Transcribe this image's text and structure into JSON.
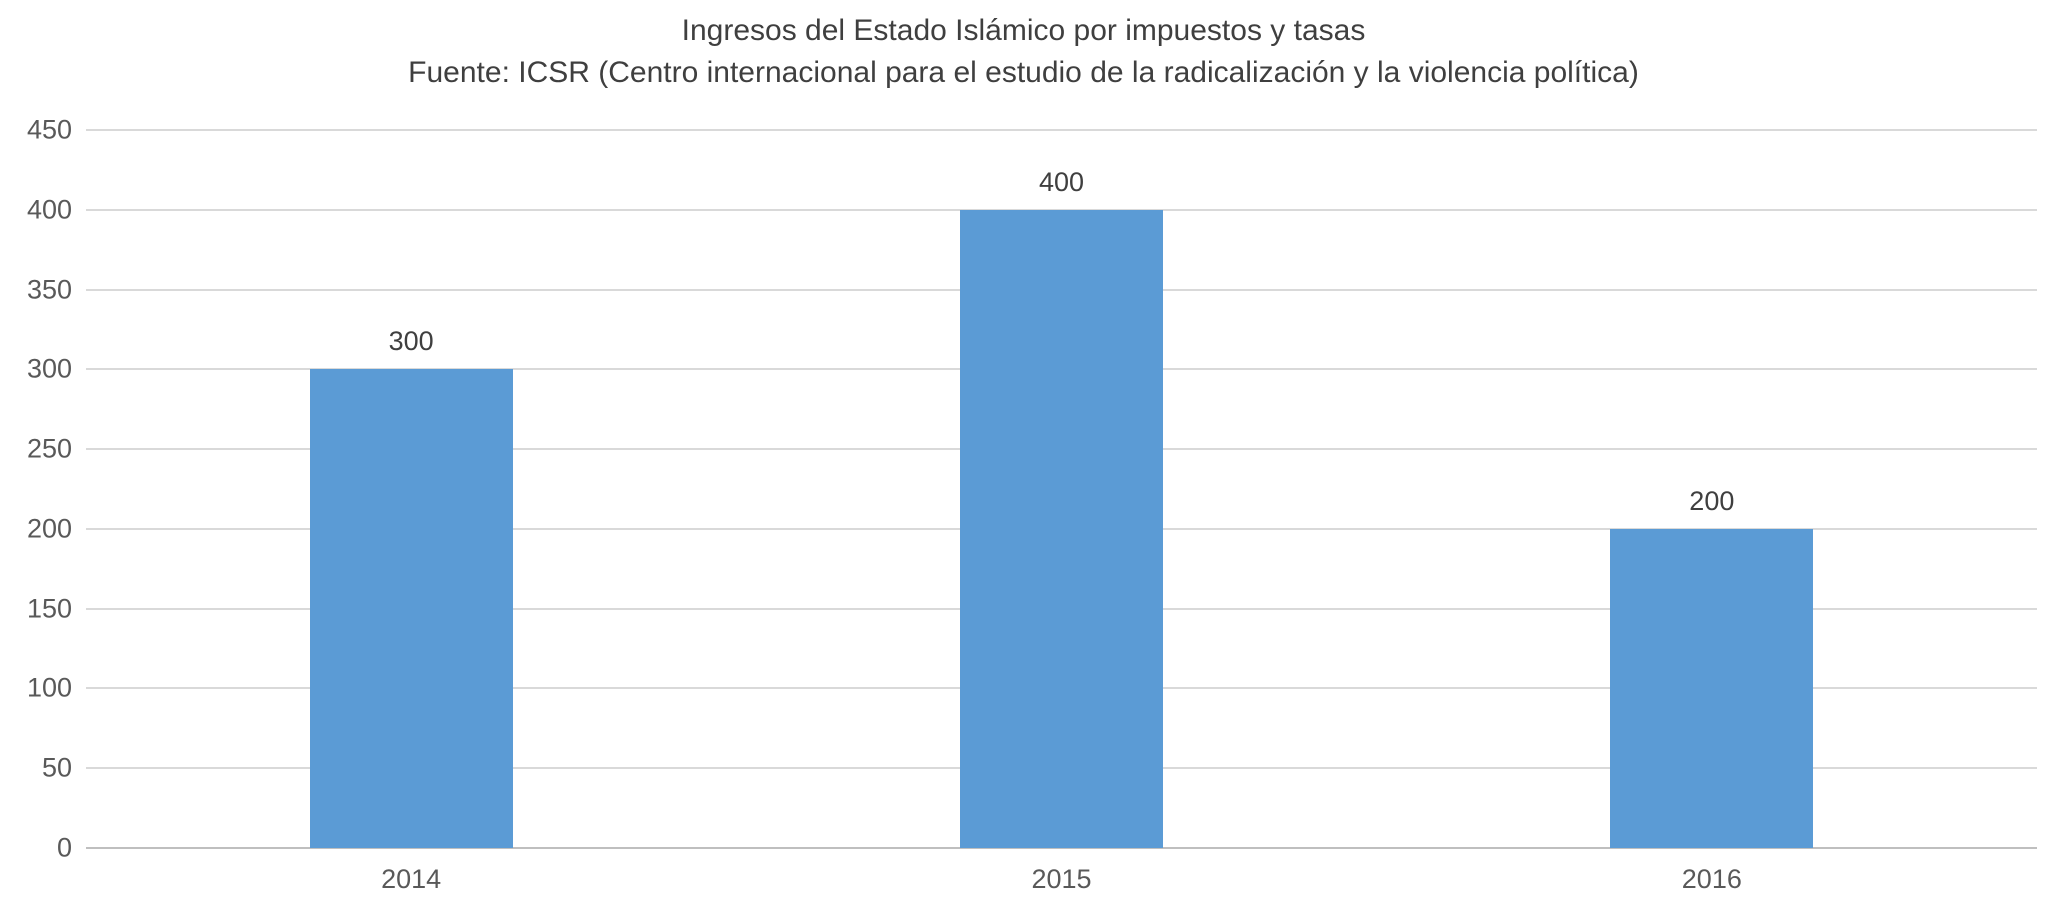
{
  "chart_data": {
    "type": "bar",
    "title": "Ingresos del Estado Islámico por impuestos y tasas",
    "subtitle": "Fuente: ICSR (Centro internacional para el estudio de la radicalización y la violencia política)",
    "categories": [
      "2014",
      "2015",
      "2016"
    ],
    "values": [
      300,
      400,
      200
    ],
    "value_labels": [
      "300",
      "400",
      "200"
    ],
    "xlabel": "",
    "ylabel": "",
    "ylim": [
      0,
      450
    ],
    "yticks": [
      0,
      50,
      100,
      150,
      200,
      250,
      300,
      350,
      400,
      450
    ],
    "grid": "horizontal",
    "legend": "none",
    "colors": {
      "bar": "#5B9BD5",
      "gridline": "#D9D9D9",
      "baseline": "#BFBFBF",
      "axis_labels": "#595959",
      "title": "#3f3f3f",
      "background": "#ffffff"
    }
  }
}
